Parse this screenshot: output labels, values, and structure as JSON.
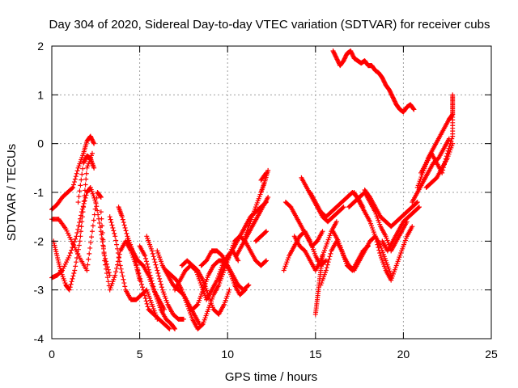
{
  "chart_data": {
    "type": "scatter",
    "title": "Day 304 of 2020, Sidereal Day-to-day VTEC variation (SDTVAR) for receiver cubs",
    "xlabel": "GPS time / hours",
    "ylabel": "SDTVAR / TECUs",
    "xlim": [
      0,
      25
    ],
    "ylim": [
      -4,
      2
    ],
    "xticks": [
      "0",
      "5",
      "10",
      "15",
      "20",
      "25"
    ],
    "yticks": [
      "-4",
      "-3",
      "-2",
      "-1",
      "0",
      "1",
      "2"
    ],
    "grid": true,
    "marker": "plus",
    "color": "#ff0000",
    "series": [
      {
        "x": [
          0.0,
          0.3,
          0.6,
          0.9,
          1.2,
          1.5,
          1.8,
          2.0,
          2.2,
          2.4
        ],
        "y": [
          -1.35,
          -1.25,
          -1.1,
          -1.0,
          -0.9,
          -0.5,
          -0.2,
          0.05,
          0.15,
          0.0
        ]
      },
      {
        "x": [
          0.0,
          0.4,
          0.8,
          1.2,
          1.6,
          2.0,
          2.3,
          2.6,
          2.8
        ],
        "y": [
          -1.55,
          -1.55,
          -1.75,
          -2.05,
          -2.35,
          -2.6,
          -1.8,
          -1.0,
          -1.1
        ]
      },
      {
        "x": [
          0.0,
          0.3,
          0.6,
          1.0,
          1.4,
          1.7,
          2.0,
          2.2,
          2.5,
          2.8,
          3.0,
          3.3
        ],
        "y": [
          -2.75,
          -2.7,
          -2.6,
          -2.3,
          -1.9,
          -1.4,
          -1.0,
          -0.9,
          -1.2,
          -1.8,
          -2.3,
          -2.7
        ]
      },
      {
        "x": [
          0.1,
          0.3,
          0.5,
          0.8,
          1.0,
          1.3,
          1.6,
          1.8,
          2.0,
          2.3
        ],
        "y": [
          -2.0,
          -2.3,
          -2.6,
          -2.9,
          -3.0,
          -2.6,
          -2.0,
          -1.3,
          -0.5,
          -0.2
        ]
      },
      {
        "x": [
          1.5,
          1.8,
          2.0,
          2.2,
          2.4
        ],
        "y": [
          -1.2,
          -0.4,
          -0.25,
          -0.3,
          -0.5
        ]
      },
      {
        "x": [
          2.8,
          3.0,
          3.3,
          3.6,
          3.9,
          4.2,
          4.5,
          4.8,
          5.0
        ],
        "y": [
          -1.4,
          -2.4,
          -3.0,
          -2.7,
          -2.2,
          -2.0,
          -2.2,
          -2.5,
          -2.8
        ]
      },
      {
        "x": [
          3.3,
          3.6,
          3.9,
          4.2,
          4.5,
          4.8,
          5.1,
          5.4,
          5.7,
          6.0
        ],
        "y": [
          -1.5,
          -1.9,
          -2.5,
          -3.0,
          -3.2,
          -3.2,
          -3.1,
          -3.0,
          -3.3,
          -3.6
        ]
      },
      {
        "x": [
          3.8,
          4.0,
          4.3,
          4.6,
          4.9,
          5.2,
          5.5,
          5.8,
          6.1,
          6.4
        ],
        "y": [
          -1.3,
          -1.5,
          -1.9,
          -2.2,
          -2.4,
          -2.5,
          -2.7,
          -3.0,
          -3.2,
          -3.4
        ]
      },
      {
        "x": [
          4.3,
          4.6,
          4.9,
          5.2,
          5.5,
          5.8,
          6.1,
          6.4,
          6.7
        ],
        "y": [
          -2.0,
          -2.2,
          -2.6,
          -3.0,
          -3.4,
          -3.5,
          -3.6,
          -3.7,
          -3.8
        ]
      },
      {
        "x": [
          5.0,
          5.3,
          5.6,
          5.9,
          6.2,
          6.5,
          6.8,
          7.0
        ],
        "y": [
          -2.1,
          -2.3,
          -2.7,
          -3.1,
          -3.4,
          -3.6,
          -3.7,
          -3.8
        ]
      },
      {
        "x": [
          5.4,
          5.7,
          6.0,
          6.3,
          6.6,
          6.9,
          7.2,
          7.5
        ],
        "y": [
          -1.9,
          -2.2,
          -2.6,
          -3.0,
          -3.3,
          -3.5,
          -3.6,
          -3.6
        ]
      },
      {
        "x": [
          6.0,
          6.3,
          6.6,
          6.9,
          7.2,
          7.5,
          7.8,
          8.1,
          8.4
        ],
        "y": [
          -2.2,
          -2.5,
          -2.7,
          -2.9,
          -3.0,
          -3.1,
          -3.3,
          -3.5,
          -3.7
        ]
      },
      {
        "x": [
          6.5,
          6.8,
          7.1,
          7.4,
          7.7,
          8.0,
          8.3,
          8.6,
          8.9,
          9.2,
          9.5,
          9.8
        ],
        "y": [
          -2.6,
          -2.7,
          -2.8,
          -3.0,
          -3.3,
          -3.6,
          -3.8,
          -3.7,
          -3.4,
          -3.1,
          -2.9,
          -2.6
        ]
      },
      {
        "x": [
          7.0,
          7.3,
          7.6,
          7.9,
          8.2,
          8.5,
          8.8,
          9.1,
          9.4,
          9.7,
          10.0,
          10.3,
          10.6
        ],
        "y": [
          -3.0,
          -2.8,
          -2.6,
          -2.5,
          -2.6,
          -2.9,
          -3.2,
          -3.0,
          -2.8,
          -2.5,
          -2.3,
          -2.2,
          -2.4
        ]
      },
      {
        "x": [
          7.4,
          7.7,
          8.0,
          8.3,
          8.6,
          8.9,
          9.2,
          9.5,
          9.8,
          10.1
        ],
        "y": [
          -2.5,
          -2.4,
          -2.5,
          -2.6,
          -2.8,
          -3.1,
          -3.4,
          -3.5,
          -3.3,
          -3.0
        ]
      },
      {
        "x": [
          8.0,
          8.3,
          8.6,
          8.9,
          9.2,
          9.5,
          9.8,
          10.1,
          10.4,
          10.7,
          11.0
        ],
        "y": [
          -3.4,
          -3.3,
          -3.0,
          -2.7,
          -2.5,
          -2.4,
          -2.4,
          -2.6,
          -2.9,
          -3.1,
          -3.0
        ]
      },
      {
        "x": [
          8.5,
          8.8,
          9.1,
          9.4,
          9.7,
          10.0,
          10.3,
          10.6,
          10.9,
          11.2
        ],
        "y": [
          -2.5,
          -2.4,
          -2.2,
          -2.2,
          -2.3,
          -2.5,
          -2.7,
          -2.9,
          -3.0,
          -2.9
        ]
      },
      {
        "x": [
          9.5,
          9.8,
          10.1,
          10.4,
          10.7,
          11.0,
          11.3,
          11.6,
          11.9,
          12.2
        ],
        "y": [
          -2.8,
          -2.5,
          -2.3,
          -2.0,
          -1.9,
          -2.0,
          -2.2,
          -2.4,
          -2.5,
          -2.4
        ]
      },
      {
        "x": [
          9.8,
          10.1,
          10.4,
          10.7,
          11.0,
          11.3,
          11.6,
          11.9,
          12.2
        ],
        "y": [
          -2.6,
          -2.3,
          -2.1,
          -1.9,
          -1.7,
          -1.5,
          -1.4,
          -1.3,
          -1.2
        ]
      },
      {
        "x": [
          10.5,
          10.8,
          11.1,
          11.4,
          11.7,
          12.0,
          12.3
        ],
        "y": [
          -2.3,
          -2.1,
          -1.9,
          -1.7,
          -1.5,
          -1.3,
          -1.1
        ]
      },
      {
        "x": [
          11.0,
          11.3,
          11.6,
          11.9,
          12.1,
          12.3
        ],
        "y": [
          -1.9,
          -1.6,
          -1.3,
          -1.0,
          -0.8,
          -0.55
        ]
      },
      {
        "x": [
          11.6,
          11.9,
          12.2
        ],
        "y": [
          -2.0,
          -1.9,
          -1.8
        ]
      },
      {
        "x": [
          11.9,
          12.2
        ],
        "y": [
          -0.75,
          -0.6
        ]
      },
      {
        "x": [
          13.2,
          13.5,
          13.8,
          14.1,
          14.4,
          14.7,
          15.0,
          15.3,
          15.6
        ],
        "y": [
          -2.6,
          -2.3,
          -2.1,
          -1.9,
          -1.8,
          -2.0,
          -2.3,
          -2.5,
          -2.4
        ]
      },
      {
        "x": [
          13.3,
          13.6,
          13.9,
          14.2,
          14.5,
          14.8,
          15.1,
          15.4
        ],
        "y": [
          -1.2,
          -1.3,
          -1.5,
          -1.7,
          -1.9,
          -2.1,
          -2.0,
          -1.8
        ]
      },
      {
        "x": [
          13.8,
          14.1,
          14.4,
          14.7,
          15.0,
          15.3,
          15.6,
          15.9,
          16.2
        ],
        "y": [
          -1.9,
          -2.1,
          -2.2,
          -2.4,
          -2.6,
          -2.4,
          -2.1,
          -1.8,
          -1.6
        ]
      },
      {
        "x": [
          14.2,
          14.5,
          14.8,
          15.1,
          15.4,
          15.7,
          16.0,
          16.3,
          16.6
        ],
        "y": [
          -0.7,
          -0.9,
          -1.1,
          -1.3,
          -1.5,
          -1.6,
          -1.5,
          -1.4,
          -1.3
        ]
      },
      {
        "x": [
          14.7,
          15.0,
          15.3,
          15.6,
          15.9,
          16.2,
          16.5,
          16.8,
          17.1,
          17.4,
          17.7
        ],
        "y": [
          -1.0,
          -1.2,
          -1.4,
          -1.5,
          -1.4,
          -1.3,
          -1.2,
          -1.1,
          -1.0,
          -1.1,
          -1.3
        ]
      },
      {
        "x": [
          15.0,
          15.1,
          15.2,
          15.3,
          15.4
        ],
        "y": [
          -3.5,
          -3.2,
          -2.9,
          -2.6,
          -2.3
        ]
      },
      {
        "x": [
          15.3,
          15.6,
          15.9,
          16.2,
          16.5,
          16.8,
          17.1,
          17.4,
          17.7,
          18.0
        ],
        "y": [
          -2.9,
          -2.6,
          -2.2,
          -2.0,
          -2.2,
          -2.5,
          -2.6,
          -2.4,
          -2.2,
          -2.1
        ]
      },
      {
        "x": [
          16.0,
          16.3,
          16.6,
          16.9,
          17.2,
          17.5,
          17.8,
          18.1,
          18.4,
          18.7,
          19.0,
          19.3
        ],
        "y": [
          -1.8,
          -2.0,
          -2.3,
          -2.5,
          -2.6,
          -2.4,
          -2.2,
          -2.0,
          -1.9,
          -2.1,
          -2.4,
          -2.7
        ]
      },
      {
        "x": [
          16.9,
          17.2,
          17.5,
          17.8,
          18.1,
          18.4,
          18.7,
          19.0,
          19.3,
          19.6,
          19.9,
          20.2
        ],
        "y": [
          -1.3,
          -1.2,
          -1.1,
          -1.0,
          -1.2,
          -1.4,
          -1.7,
          -1.9,
          -2.2,
          -2.0,
          -1.8,
          -1.6
        ]
      },
      {
        "x": [
          17.2,
          17.5,
          17.8,
          18.1,
          18.4,
          18.7,
          19.0,
          19.3,
          19.6,
          19.9,
          20.2,
          20.5
        ],
        "y": [
          -1.0,
          -1.2,
          -1.4,
          -1.6,
          -1.9,
          -2.3,
          -2.6,
          -2.8,
          -2.5,
          -2.2,
          -1.9,
          -1.7
        ]
      },
      {
        "x": [
          17.8,
          18.1,
          18.4,
          18.7,
          19.0,
          19.3,
          19.6,
          19.9,
          20.2,
          20.5,
          20.8
        ],
        "y": [
          -0.95,
          -1.1,
          -1.3,
          -1.5,
          -1.6,
          -1.7,
          -1.6,
          -1.5,
          -1.4,
          -1.3,
          -1.2
        ]
      },
      {
        "x": [
          18.8,
          19.1,
          19.4,
          19.7,
          20.0,
          20.3,
          20.6,
          20.9
        ],
        "y": [
          -2.0,
          -2.2,
          -2.0,
          -1.8,
          -1.6,
          -1.5,
          -1.4,
          -1.3
        ]
      },
      {
        "x": [
          20.5,
          20.8,
          21.1,
          21.4,
          21.7,
          22.0,
          22.3,
          22.6
        ],
        "y": [
          -1.2,
          -1.0,
          -0.8,
          -0.6,
          -0.4,
          -0.3,
          -0.1,
          0.1
        ]
      },
      {
        "x": [
          20.8,
          21.1,
          21.4,
          21.7,
          22.0,
          22.3,
          22.6,
          22.8
        ],
        "y": [
          -0.9,
          -0.6,
          -0.3,
          -0.1,
          0.1,
          0.3,
          0.5,
          0.6
        ]
      },
      {
        "x": [
          21.0,
          21.3,
          21.6,
          21.9,
          22.2,
          22.5,
          22.8
        ],
        "y": [
          -0.6,
          -0.4,
          -0.2,
          -0.4,
          -0.6,
          -0.2,
          0.15
        ]
      },
      {
        "x": [
          21.3,
          21.6,
          21.9,
          22.2,
          22.5,
          22.8
        ],
        "y": [
          -0.9,
          -0.8,
          -0.7,
          -0.5,
          -0.3,
          0.0
        ]
      },
      {
        "x": [
          22.8,
          22.8,
          22.8,
          22.8
        ],
        "y": [
          0.2,
          0.6,
          0.8,
          1.0
        ]
      },
      {
        "x": [
          16.0,
          16.2,
          16.4,
          16.6,
          16.8,
          17.0,
          17.2,
          17.4,
          17.6,
          17.8,
          18.0,
          18.2,
          18.4,
          18.6,
          18.8,
          19.0,
          19.2,
          19.4,
          19.6,
          19.8,
          20.0,
          20.2,
          20.4,
          20.6
        ],
        "y": [
          1.9,
          1.75,
          1.6,
          1.7,
          1.85,
          1.9,
          1.75,
          1.7,
          1.65,
          1.7,
          1.6,
          1.6,
          1.5,
          1.45,
          1.35,
          1.2,
          1.1,
          0.95,
          0.8,
          0.7,
          0.65,
          0.75,
          0.8,
          0.7
        ]
      }
    ]
  }
}
